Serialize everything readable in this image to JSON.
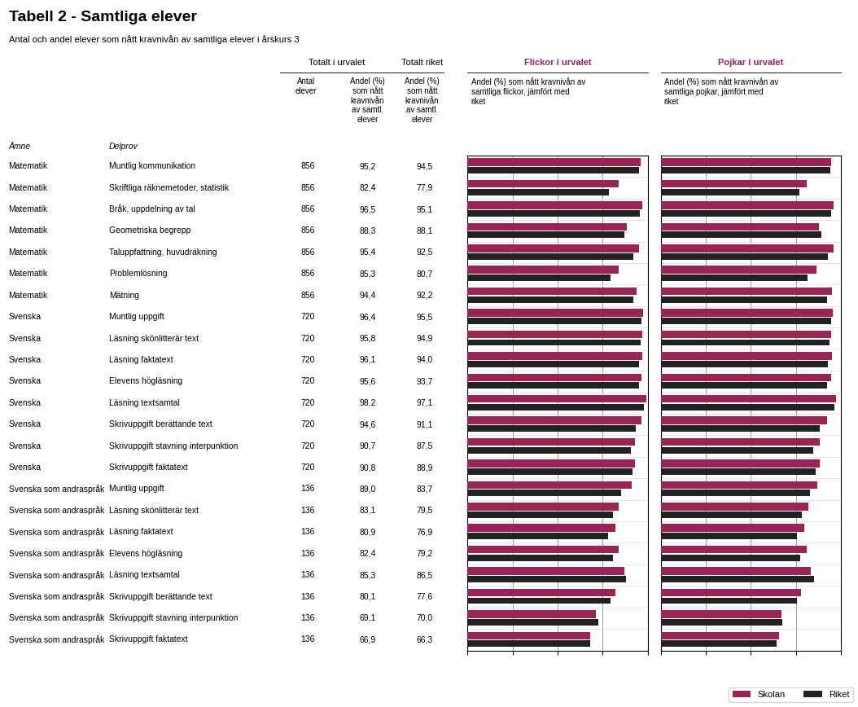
{
  "chart_data": {
    "type": "bar",
    "orientation": "horizontal",
    "title": "Tabell 2 - Samtliga elever",
    "subtitle": "Antal och andel elever som nått kravnivån av samtliga elever i årskurs 3",
    "column_groups": {
      "totalt_i_urvalet": "Totalt i urvalet",
      "totalt_riket": "Totalt riket"
    },
    "column_labels": {
      "amne": "Ämne",
      "delprov": "Delprov",
      "antal": "Antal\nelever",
      "andel": "Andel (%)\nsom nått\nkravnivån\nav samtl.\nelever",
      "riket": "Andel (%)\nsom nått\nkravnivån\nav samtl.\nelever"
    },
    "amne": [
      "Matematik",
      "Matematik",
      "Matematik",
      "Matematik",
      "Matematik",
      "Matematik",
      "Matematik",
      "Svenska",
      "Svenska",
      "Svenska",
      "Svenska",
      "Svenska",
      "Svenska",
      "Svenska",
      "Svenska",
      "Svenska som andraspråk",
      "Svenska som andraspråk",
      "Svenska som andraspråk",
      "Svenska som andraspråk",
      "Svenska som andraspråk",
      "Svenska som andraspråk",
      "Svenska som andraspråk",
      "Svenska som andraspråk"
    ],
    "categories": [
      "Muntlig kommunikation",
      "Skriftliga räknemetoder, statistik",
      "Bråk, uppdelning av tal",
      "Geometriska begrepp",
      "Taluppfattning, huvudräkning",
      "Problemlösning",
      "Mätning",
      "Muntlig uppgift",
      "Läsning skönlitterär text",
      "Läsning faktatext",
      "Elevens högläsning",
      "Läsning textsamtal",
      "Skrivuppgift berättande text",
      "Skrivuppgift stavning interpunktion",
      "Skrivuppgift faktatext",
      "Muntlig uppgift",
      "Läsning skönlitterär text",
      "Läsning faktatext",
      "Elevens högläsning",
      "Läsning textsamtal",
      "Skrivuppgift berättande text",
      "Skrivuppgift stavning interpunktion",
      "Skrivuppgift faktatext"
    ],
    "antal": {
      "values": [
        856,
        856,
        856,
        856,
        856,
        856,
        856,
        720,
        720,
        720,
        720,
        720,
        720,
        720,
        720,
        136,
        136,
        136,
        136,
        136,
        136,
        136,
        136
      ]
    },
    "andel": {
      "values": [
        95.2,
        82.4,
        96.5,
        88.3,
        95.4,
        85.3,
        94.4,
        96.4,
        95.8,
        96.1,
        95.6,
        98.2,
        94.6,
        90.7,
        90.8,
        89.0,
        83.1,
        80.9,
        82.4,
        85.3,
        80.1,
        69.1,
        66.9
      ],
      "value_labels": [
        "95,2",
        "82,4",
        "96,5",
        "88,3",
        "95,4",
        "85,3",
        "94,4",
        "96,4",
        "95,8",
        "96,1",
        "95,6",
        "98,2",
        "94,6",
        "90,7",
        "90,8",
        "89,0",
        "83,1",
        "80,9",
        "82,4",
        "85,3",
        "80,1",
        "69,1",
        "66,9"
      ]
    },
    "riket": {
      "values": [
        94.5,
        77.9,
        95.1,
        88.1,
        92.5,
        80.7,
        92.2,
        95.5,
        94.9,
        94.0,
        93.7,
        97.1,
        91.1,
        87.5,
        88.9,
        83.7,
        79.5,
        76.9,
        79.2,
        86.5,
        77.6,
        70.0,
        66.3
      ],
      "value_labels": [
        "94,5",
        "77,9",
        "95,1",
        "88,1",
        "92,5",
        "80,7",
        "92,2",
        "95,5",
        "94,9",
        "94,0",
        "93,7",
        "97,1",
        "91,1",
        "87,5",
        "88,9",
        "83,7",
        "79,5",
        "76,9",
        "79,2",
        "86,5",
        "77,6",
        "70,0",
        "66,3"
      ]
    },
    "panels": [
      {
        "title": "Flickor i urvalet",
        "subtitle": "Andel (%) som nått kravnivån av\nsamtliga flickor, jämfört med\nriket",
        "series": [
          {
            "name": "Skolan",
            "color": "#9B2457",
            "values": [
              96.0,
              84.0,
              97.0,
              88.5,
              95.0,
              84.0,
              94.0,
              97.5,
              97.0,
              97.0,
              96.5,
              99.0,
              96.5,
              93.0,
              93.0,
              91.0,
              84.0,
              82.0,
              84.0,
              87.0,
              82.0,
              71.0,
              68.0
            ]
          },
          {
            "name": "Riket",
            "color": "#222222",
            "values": [
              95.0,
              78.5,
              95.5,
              87.0,
              92.0,
              79.5,
              92.0,
              96.5,
              96.0,
              95.0,
              95.0,
              98.0,
              93.5,
              90.5,
              91.5,
              85.0,
              80.5,
              78.0,
              80.5,
              88.0,
              79.5,
              72.5,
              68.0
            ]
          }
        ]
      },
      {
        "title": "Pojkar i urvalet",
        "subtitle": "Andel (%) som nått kravnivån av\nsamtliga pojkar, jämfört med\nriket",
        "series": [
          {
            "name": "Skolan",
            "color": "#9B2457",
            "values": [
              94.5,
              81.0,
              96.0,
              88.0,
              95.8,
              86.5,
              95.0,
              95.5,
              94.5,
              95.0,
              94.5,
              97.5,
              92.5,
              88.5,
              88.5,
              87.0,
              82.0,
              79.5,
              81.0,
              83.5,
              78.0,
              67.0,
              65.5
            ]
          },
          {
            "name": "Riket",
            "color": "#222222",
            "values": [
              94.0,
              77.0,
              94.8,
              89.0,
              93.0,
              81.5,
              92.5,
              94.5,
              93.5,
              93.0,
              92.5,
              96.5,
              88.5,
              84.5,
              86.0,
              83.0,
              78.5,
              75.5,
              77.5,
              85.0,
              75.5,
              67.5,
              64.5
            ]
          }
        ]
      }
    ],
    "xlim": [
      0,
      100
    ],
    "xticks": [
      0,
      25,
      50,
      75,
      100
    ],
    "grid": true,
    "tick_labels": false,
    "legend": "lower right"
  }
}
